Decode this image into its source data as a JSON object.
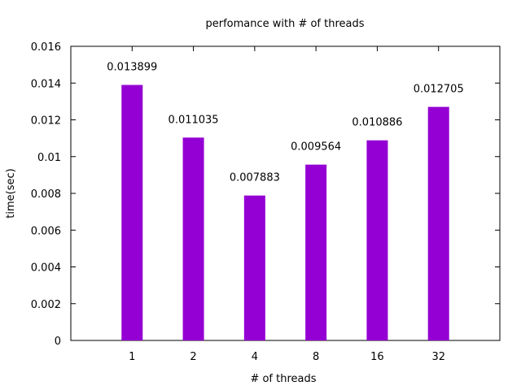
{
  "chart_data": {
    "type": "bar",
    "title": "perfomance with # of threads",
    "xlabel": "# of threads",
    "ylabel": "time(sec)",
    "categories": [
      "1",
      "2",
      "4",
      "8",
      "16",
      "32"
    ],
    "values": [
      0.013899,
      0.011035,
      0.007883,
      0.009564,
      0.010886,
      0.012705
    ],
    "data_labels": [
      "0.013899",
      "0.011035",
      "0.007883",
      "0.009564",
      "0.010886",
      "0.012705"
    ],
    "ylim": [
      0,
      0.016
    ],
    "yticks": [
      0,
      0.002,
      0.004,
      0.006,
      0.008,
      0.01,
      0.012,
      0.014,
      0.016
    ],
    "ytick_labels": [
      "0",
      "0.002",
      "0.004",
      "0.006",
      "0.008",
      "0.01",
      "0.012",
      "0.014",
      "0.016"
    ],
    "grid": false,
    "legend": "none",
    "bar_color": "#9400d3"
  }
}
